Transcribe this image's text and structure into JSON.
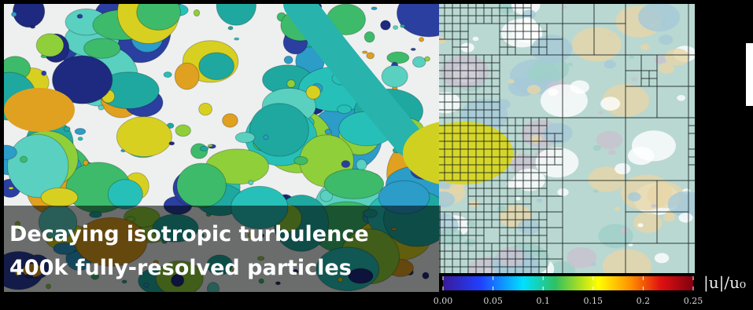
{
  "caption": {
    "line1": "Decaying isotropic turbulence",
    "line2": "400k fully-resolved particles"
  },
  "colorbar": {
    "label": "|u|/u₀",
    "range": [
      0,
      0.25
    ],
    "ticks": [
      {
        "value": 0,
        "label": "0.00"
      },
      {
        "value": 0.05,
        "label": "0.05"
      },
      {
        "value": 0.1,
        "label": "0.1"
      },
      {
        "value": 0.15,
        "label": "0.15"
      },
      {
        "value": 0.2,
        "label": "0.2"
      },
      {
        "value": 0.25,
        "label": "0.25"
      }
    ]
  }
}
